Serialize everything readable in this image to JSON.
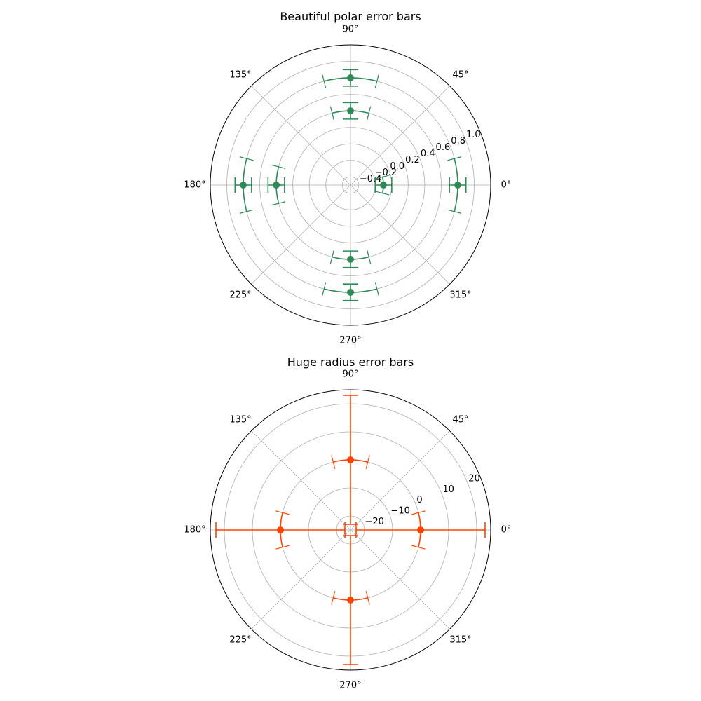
{
  "chart_data": [
    {
      "type": "scatter",
      "projection": "polar",
      "title": "Beautiful polar error bars",
      "color": "#2e8b57",
      "rlim": [
        -0.5,
        1.2
      ],
      "r_ticks": [
        -0.4,
        -0.2,
        0.0,
        0.2,
        0.4,
        0.6,
        0.8,
        1.0
      ],
      "r_tick_labels": [
        "−0.4",
        "−0.2",
        "0.0",
        "0.2",
        "0.4",
        "0.6",
        "0.8",
        "1.0"
      ],
      "r_label_angle_deg": 22.5,
      "theta_ticks_deg": [
        0,
        45,
        90,
        135,
        180,
        225,
        270,
        315
      ],
      "theta_tick_labels": [
        "0°",
        "45°",
        "90°",
        "135°",
        "180°",
        "225°",
        "270°",
        "315°"
      ],
      "grid": true,
      "legend": "none",
      "points": [
        {
          "theta_deg": 0,
          "r": 0.8,
          "xerr_deg": 14.3,
          "yerr": 0.1
        },
        {
          "theta_deg": 0,
          "r": -0.1,
          "xerr_deg": 14.3,
          "yerr": 0.1
        },
        {
          "theta_deg": 90,
          "r": 0.4,
          "xerr_deg": 14.3,
          "yerr": 0.1
        },
        {
          "theta_deg": 90,
          "r": 0.8,
          "xerr_deg": 14.3,
          "yerr": 0.1
        },
        {
          "theta_deg": 180,
          "r": 0.4,
          "xerr_deg": 14.3,
          "yerr": 0.1
        },
        {
          "theta_deg": 180,
          "r": 0.8,
          "xerr_deg": 14.3,
          "yerr": 0.1
        },
        {
          "theta_deg": 270,
          "r": 0.4,
          "xerr_deg": 14.3,
          "yerr": 0.1
        },
        {
          "theta_deg": 270,
          "r": 0.8,
          "xerr_deg": 14.3,
          "yerr": 0.1
        }
      ]
    },
    {
      "type": "scatter",
      "projection": "polar",
      "title": "Huge radius error bars",
      "color": "#ff4500",
      "rlim": [
        -25,
        25
      ],
      "r_ticks": [
        -20,
        -10,
        0,
        10,
        20
      ],
      "r_tick_labels": [
        "−20",
        "−10",
        "0",
        "10",
        "20"
      ],
      "r_label_angle_deg": 22.5,
      "theta_ticks_deg": [
        0,
        45,
        90,
        135,
        180,
        225,
        270,
        315
      ],
      "theta_tick_labels": [
        "0°",
        "45°",
        "90°",
        "135°",
        "180°",
        "225°",
        "270°",
        "315°"
      ],
      "grid": true,
      "legend": "none",
      "points": [
        {
          "theta_deg": 0,
          "r": 0,
          "xerr_deg": 14.3,
          "yerr": 23
        },
        {
          "theta_deg": 90,
          "r": 0,
          "xerr_deg": 14.3,
          "yerr": 23
        },
        {
          "theta_deg": 180,
          "r": 0,
          "xerr_deg": 14.3,
          "yerr": 23
        },
        {
          "theta_deg": 270,
          "r": 0,
          "xerr_deg": 14.3,
          "yerr": 23
        }
      ]
    }
  ]
}
